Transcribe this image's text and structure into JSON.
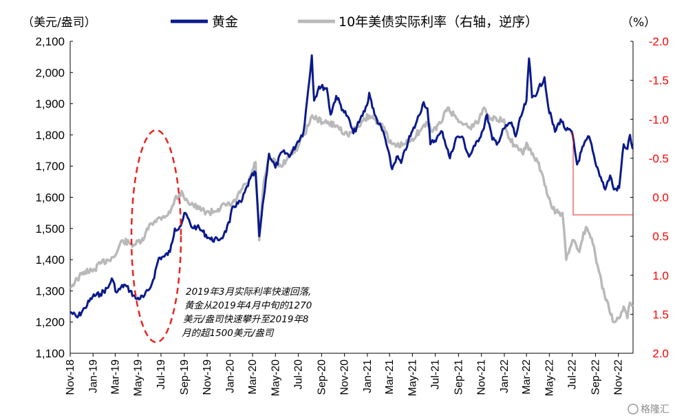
{
  "chart_data": {
    "type": "line",
    "left_unit": "（美元/盎司）",
    "right_unit": "（%）",
    "y_left": {
      "min": 1100,
      "max": 2100,
      "ticks": [
        "1,100",
        "1,200",
        "1,300",
        "1,400",
        "1,500",
        "1,600",
        "1,700",
        "1,800",
        "1,900",
        "2,000",
        "2,100"
      ]
    },
    "y_right": {
      "min": -2.0,
      "max": 2.0,
      "inverted": true,
      "ticks": [
        "-2.0",
        "-1.5",
        "-1.0",
        "-0.5",
        "0.0",
        "0.5",
        "1.0",
        "1.5",
        "2.0"
      ]
    },
    "x_ticks": [
      "Nov-18",
      "Jan-19",
      "Mar-19",
      "May-19",
      "Jul-19",
      "Sep-19",
      "Nov-19",
      "Jan-20",
      "Mar-20",
      "May-20",
      "Jul-20",
      "Sep-20",
      "Nov-20",
      "Jan-21",
      "Mar-21",
      "May-21",
      "Jul-21",
      "Sep-21",
      "Nov-21",
      "Jan-22",
      "Mar-22",
      "May-22",
      "Jul-22",
      "Sep-22",
      "Nov-22"
    ],
    "series": [
      {
        "name": "黄金",
        "axis": "left",
        "color": "#0a1a8c",
        "points": [
          [
            "2018-11-01",
            1233
          ],
          [
            "2018-11-20",
            1215
          ],
          [
            "2018-12-10",
            1245
          ],
          [
            "2018-12-31",
            1282
          ],
          [
            "2019-01-20",
            1290
          ],
          [
            "2019-02-10",
            1310
          ],
          [
            "2019-02-20",
            1340
          ],
          [
            "2019-03-05",
            1295
          ],
          [
            "2019-03-25",
            1320
          ],
          [
            "2019-04-10",
            1300
          ],
          [
            "2019-04-25",
            1275
          ],
          [
            "2019-05-15",
            1280
          ],
          [
            "2019-05-31",
            1305
          ],
          [
            "2019-06-10",
            1335
          ],
          [
            "2019-06-25",
            1405
          ],
          [
            "2019-07-10",
            1410
          ],
          [
            "2019-07-25",
            1425
          ],
          [
            "2019-08-07",
            1500
          ],
          [
            "2019-08-20",
            1505
          ],
          [
            "2019-09-04",
            1550
          ],
          [
            "2019-09-20",
            1505
          ],
          [
            "2019-10-05",
            1505
          ],
          [
            "2019-10-20",
            1490
          ],
          [
            "2019-11-10",
            1465
          ],
          [
            "2019-11-30",
            1463
          ],
          [
            "2019-12-15",
            1478
          ],
          [
            "2019-12-31",
            1520
          ],
          [
            "2020-01-08",
            1570
          ],
          [
            "2020-01-31",
            1585
          ],
          [
            "2020-02-24",
            1660
          ],
          [
            "2020-03-09",
            1680
          ],
          [
            "2020-03-19",
            1475
          ],
          [
            "2020-03-31",
            1600
          ],
          [
            "2020-04-14",
            1740
          ],
          [
            "2020-05-01",
            1695
          ],
          [
            "2020-05-18",
            1745
          ],
          [
            "2020-06-10",
            1735
          ],
          [
            "2020-06-30",
            1780
          ],
          [
            "2020-07-15",
            1810
          ],
          [
            "2020-07-27",
            1940
          ],
          [
            "2020-08-06",
            2055
          ],
          [
            "2020-08-12",
            1910
          ],
          [
            "2020-08-25",
            1955
          ],
          [
            "2020-09-15",
            1950
          ],
          [
            "2020-09-25",
            1865
          ],
          [
            "2020-10-10",
            1925
          ],
          [
            "2020-10-28",
            1880
          ],
          [
            "2020-11-09",
            1860
          ],
          [
            "2020-11-25",
            1805
          ],
          [
            "2020-12-10",
            1840
          ],
          [
            "2020-12-31",
            1895
          ],
          [
            "2021-01-06",
            1935
          ],
          [
            "2021-01-20",
            1865
          ],
          [
            "2021-02-15",
            1800
          ],
          [
            "2021-03-08",
            1690
          ],
          [
            "2021-03-20",
            1730
          ],
          [
            "2021-04-01",
            1710
          ],
          [
            "2021-04-20",
            1780
          ],
          [
            "2021-05-10",
            1835
          ],
          [
            "2021-05-31",
            1905
          ],
          [
            "2021-06-10",
            1885
          ],
          [
            "2021-06-18",
            1770
          ],
          [
            "2021-07-05",
            1790
          ],
          [
            "2021-07-20",
            1810
          ],
          [
            "2021-08-09",
            1725
          ],
          [
            "2021-08-25",
            1790
          ],
          [
            "2021-09-10",
            1795
          ],
          [
            "2021-09-29",
            1730
          ],
          [
            "2021-10-15",
            1765
          ],
          [
            "2021-11-05",
            1815
          ],
          [
            "2021-11-16",
            1865
          ],
          [
            "2021-11-30",
            1785
          ],
          [
            "2021-12-15",
            1775
          ],
          [
            "2021-12-31",
            1820
          ],
          [
            "2022-01-20",
            1840
          ],
          [
            "2022-01-31",
            1795
          ],
          [
            "2022-02-15",
            1860
          ],
          [
            "2022-03-01",
            1910
          ],
          [
            "2022-03-08",
            2045
          ],
          [
            "2022-03-16",
            1920
          ],
          [
            "2022-03-31",
            1940
          ],
          [
            "2022-04-18",
            1985
          ],
          [
            "2022-04-28",
            1890
          ],
          [
            "2022-05-16",
            1810
          ],
          [
            "2022-05-31",
            1850
          ],
          [
            "2022-06-15",
            1815
          ],
          [
            "2022-06-30",
            1810
          ],
          [
            "2022-07-14",
            1705
          ],
          [
            "2022-07-31",
            1765
          ],
          [
            "2022-08-15",
            1795
          ],
          [
            "2022-08-31",
            1715
          ],
          [
            "2022-09-15",
            1665
          ],
          [
            "2022-09-27",
            1625
          ],
          [
            "2022-10-10",
            1670
          ],
          [
            "2022-10-20",
            1625
          ],
          [
            "2022-11-03",
            1630
          ],
          [
            "2022-11-15",
            1770
          ],
          [
            "2022-11-25",
            1755
          ],
          [
            "2022-12-02",
            1800
          ],
          [
            "2022-12-09",
            1755
          ]
        ]
      },
      {
        "name": "10年美债实际利率（右轴，逆序）",
        "axis": "right",
        "color": "#b9b9b9",
        "points": [
          [
            "2018-11-01",
            1.15
          ],
          [
            "2018-11-20",
            1.05
          ],
          [
            "2018-12-10",
            0.95
          ],
          [
            "2018-12-31",
            0.95
          ],
          [
            "2019-01-20",
            0.85
          ],
          [
            "2019-02-10",
            0.8
          ],
          [
            "2019-03-01",
            0.75
          ],
          [
            "2019-03-20",
            0.55
          ],
          [
            "2019-04-10",
            0.6
          ],
          [
            "2019-04-25",
            0.6
          ],
          [
            "2019-05-15",
            0.55
          ],
          [
            "2019-05-31",
            0.35
          ],
          [
            "2019-06-15",
            0.3
          ],
          [
            "2019-07-05",
            0.25
          ],
          [
            "2019-07-25",
            0.2
          ],
          [
            "2019-08-07",
            0.02
          ],
          [
            "2019-08-28",
            -0.05
          ],
          [
            "2019-09-10",
            0.05
          ],
          [
            "2019-09-25",
            0.1
          ],
          [
            "2019-10-10",
            0.15
          ],
          [
            "2019-11-07",
            0.2
          ],
          [
            "2019-11-30",
            0.15
          ],
          [
            "2019-12-20",
            0.1
          ],
          [
            "2019-12-31",
            0.1
          ],
          [
            "2020-01-15",
            0.05
          ],
          [
            "2020-01-31",
            -0.1
          ],
          [
            "2020-02-20",
            -0.2
          ],
          [
            "2020-03-09",
            -0.45
          ],
          [
            "2020-03-19",
            0.55
          ],
          [
            "2020-03-31",
            -0.2
          ],
          [
            "2020-04-15",
            -0.5
          ],
          [
            "2020-05-15",
            -0.4
          ],
          [
            "2020-06-10",
            -0.55
          ],
          [
            "2020-06-30",
            -0.65
          ],
          [
            "2020-07-15",
            -0.8
          ],
          [
            "2020-07-31",
            -0.95
          ],
          [
            "2020-08-07",
            -1.05
          ],
          [
            "2020-08-20",
            -1.0
          ],
          [
            "2020-09-15",
            -0.95
          ],
          [
            "2020-10-10",
            -0.92
          ],
          [
            "2020-11-09",
            -0.8
          ],
          [
            "2020-11-25",
            -0.85
          ],
          [
            "2020-12-20",
            -0.98
          ],
          [
            "2021-01-06",
            -1.05
          ],
          [
            "2021-01-20",
            -1.0
          ],
          [
            "2021-02-15",
            -0.9
          ],
          [
            "2021-03-01",
            -0.7
          ],
          [
            "2021-03-18",
            -0.65
          ],
          [
            "2021-04-10",
            -0.68
          ],
          [
            "2021-04-30",
            -0.75
          ],
          [
            "2021-05-20",
            -0.85
          ],
          [
            "2021-06-10",
            -0.95
          ],
          [
            "2021-06-25",
            -0.85
          ],
          [
            "2021-07-15",
            -0.95
          ],
          [
            "2021-08-03",
            -1.15
          ],
          [
            "2021-08-20",
            -1.05
          ],
          [
            "2021-09-10",
            -0.95
          ],
          [
            "2021-10-01",
            -0.9
          ],
          [
            "2021-10-20",
            -0.95
          ],
          [
            "2021-11-08",
            -1.15
          ],
          [
            "2021-11-20",
            -1.05
          ],
          [
            "2021-12-15",
            -0.98
          ],
          [
            "2021-12-31",
            -1.0
          ],
          [
            "2022-01-15",
            -0.75
          ],
          [
            "2022-01-31",
            -0.65
          ],
          [
            "2022-02-20",
            -0.55
          ],
          [
            "2022-03-01",
            -0.7
          ],
          [
            "2022-03-15",
            -0.55
          ],
          [
            "2022-03-31",
            -0.45
          ],
          [
            "2022-04-15",
            -0.25
          ],
          [
            "2022-04-28",
            0.0
          ],
          [
            "2022-05-10",
            0.15
          ],
          [
            "2022-05-25",
            0.2
          ],
          [
            "2022-06-05",
            0.2
          ],
          [
            "2022-06-15",
            0.8
          ],
          [
            "2022-06-25",
            0.65
          ],
          [
            "2022-07-05",
            0.55
          ],
          [
            "2022-07-20",
            0.7
          ],
          [
            "2022-07-31",
            0.45
          ],
          [
            "2022-08-10",
            0.4
          ],
          [
            "2022-08-25",
            0.6
          ],
          [
            "2022-09-10",
            0.95
          ],
          [
            "2022-09-25",
            1.25
          ],
          [
            "2022-10-08",
            1.45
          ],
          [
            "2022-10-20",
            1.6
          ],
          [
            "2022-11-01",
            1.55
          ],
          [
            "2022-11-15",
            1.4
          ],
          [
            "2022-11-25",
            1.55
          ],
          [
            "2022-12-02",
            1.35
          ],
          [
            "2022-12-09",
            1.4
          ]
        ]
      }
    ],
    "legend": "top",
    "annotation": [
      "2019年3月实际利率快速回落,",
      "黄金从2019年4月中旬的1270",
      "美元/盎司快速攀升至2019年8",
      "月的超1500美元/盎司"
    ],
    "grid": false
  },
  "watermark": "格隆汇",
  "colors": {
    "gold": "#0a1a8c",
    "rate": "#b9b9b9",
    "right_axis": "#ff0000",
    "ellipse": "#e8231e",
    "marker": "#e8231e"
  }
}
